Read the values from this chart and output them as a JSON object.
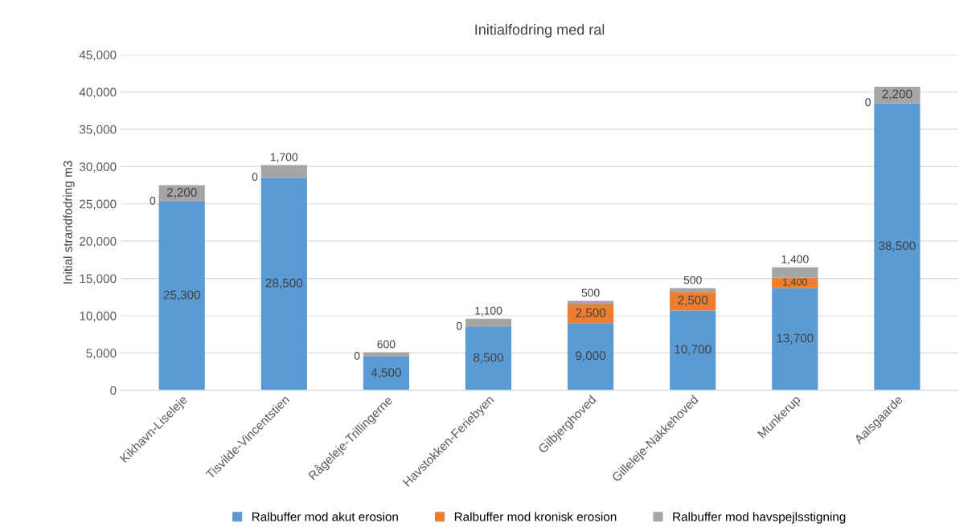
{
  "chart_data": {
    "type": "bar",
    "stacked": true,
    "title": "Initialfodring med ral",
    "ylabel": "Initial strandfodring m3",
    "categories": [
      "Kikhavn-Liseleje",
      "Tisvilde-Vincentstien",
      "Rågeleje-Trillingerne",
      "Havstokken-Feriebyen",
      "Gilbjerghoved",
      "Gilleleje-Nakkehoved",
      "Munkerup",
      "Aalsgaarde"
    ],
    "series": [
      {
        "name": "Ralbuffer mod akut erosion",
        "color": "#5b9bd5",
        "values": [
          25300,
          28500,
          4500,
          8500,
          9000,
          10700,
          13700,
          38500
        ],
        "value_labels": [
          "25,300",
          "28,500",
          "4,500",
          "8,500",
          "9,000",
          "10,700",
          "13,700",
          "38,500"
        ]
      },
      {
        "name": "Ralbuffer mod kronisk erosion",
        "color": "#ed7d31",
        "values": [
          0,
          0,
          0,
          0,
          2500,
          2500,
          1400,
          0
        ],
        "value_labels": [
          "0",
          "0",
          "0",
          "0",
          "2,500",
          "2,500",
          "1,400",
          "0"
        ]
      },
      {
        "name": "Ralbuffer mod havspejlsstigning",
        "color": "#a5a5a5",
        "values": [
          2200,
          1700,
          600,
          1100,
          500,
          500,
          1400,
          2200
        ],
        "value_labels": [
          "2,200",
          "1,700",
          "600",
          "1,100",
          "500",
          "500",
          "1,400",
          "2,200"
        ]
      }
    ],
    "ylim": [
      0,
      45000
    ],
    "yticks": [
      {
        "value": 0,
        "label": "0"
      },
      {
        "value": 5000,
        "label": "5,000"
      },
      {
        "value": 10000,
        "label": "10,000"
      },
      {
        "value": 15000,
        "label": "15,000"
      },
      {
        "value": 20000,
        "label": "20,000"
      },
      {
        "value": 25000,
        "label": "25,000"
      },
      {
        "value": 30000,
        "label": "30,000"
      },
      {
        "value": 35000,
        "label": "35,000"
      },
      {
        "value": 40000,
        "label": "40,000"
      },
      {
        "value": 45000,
        "label": "45,000"
      }
    ],
    "grid": "y",
    "legend": "bottom"
  }
}
